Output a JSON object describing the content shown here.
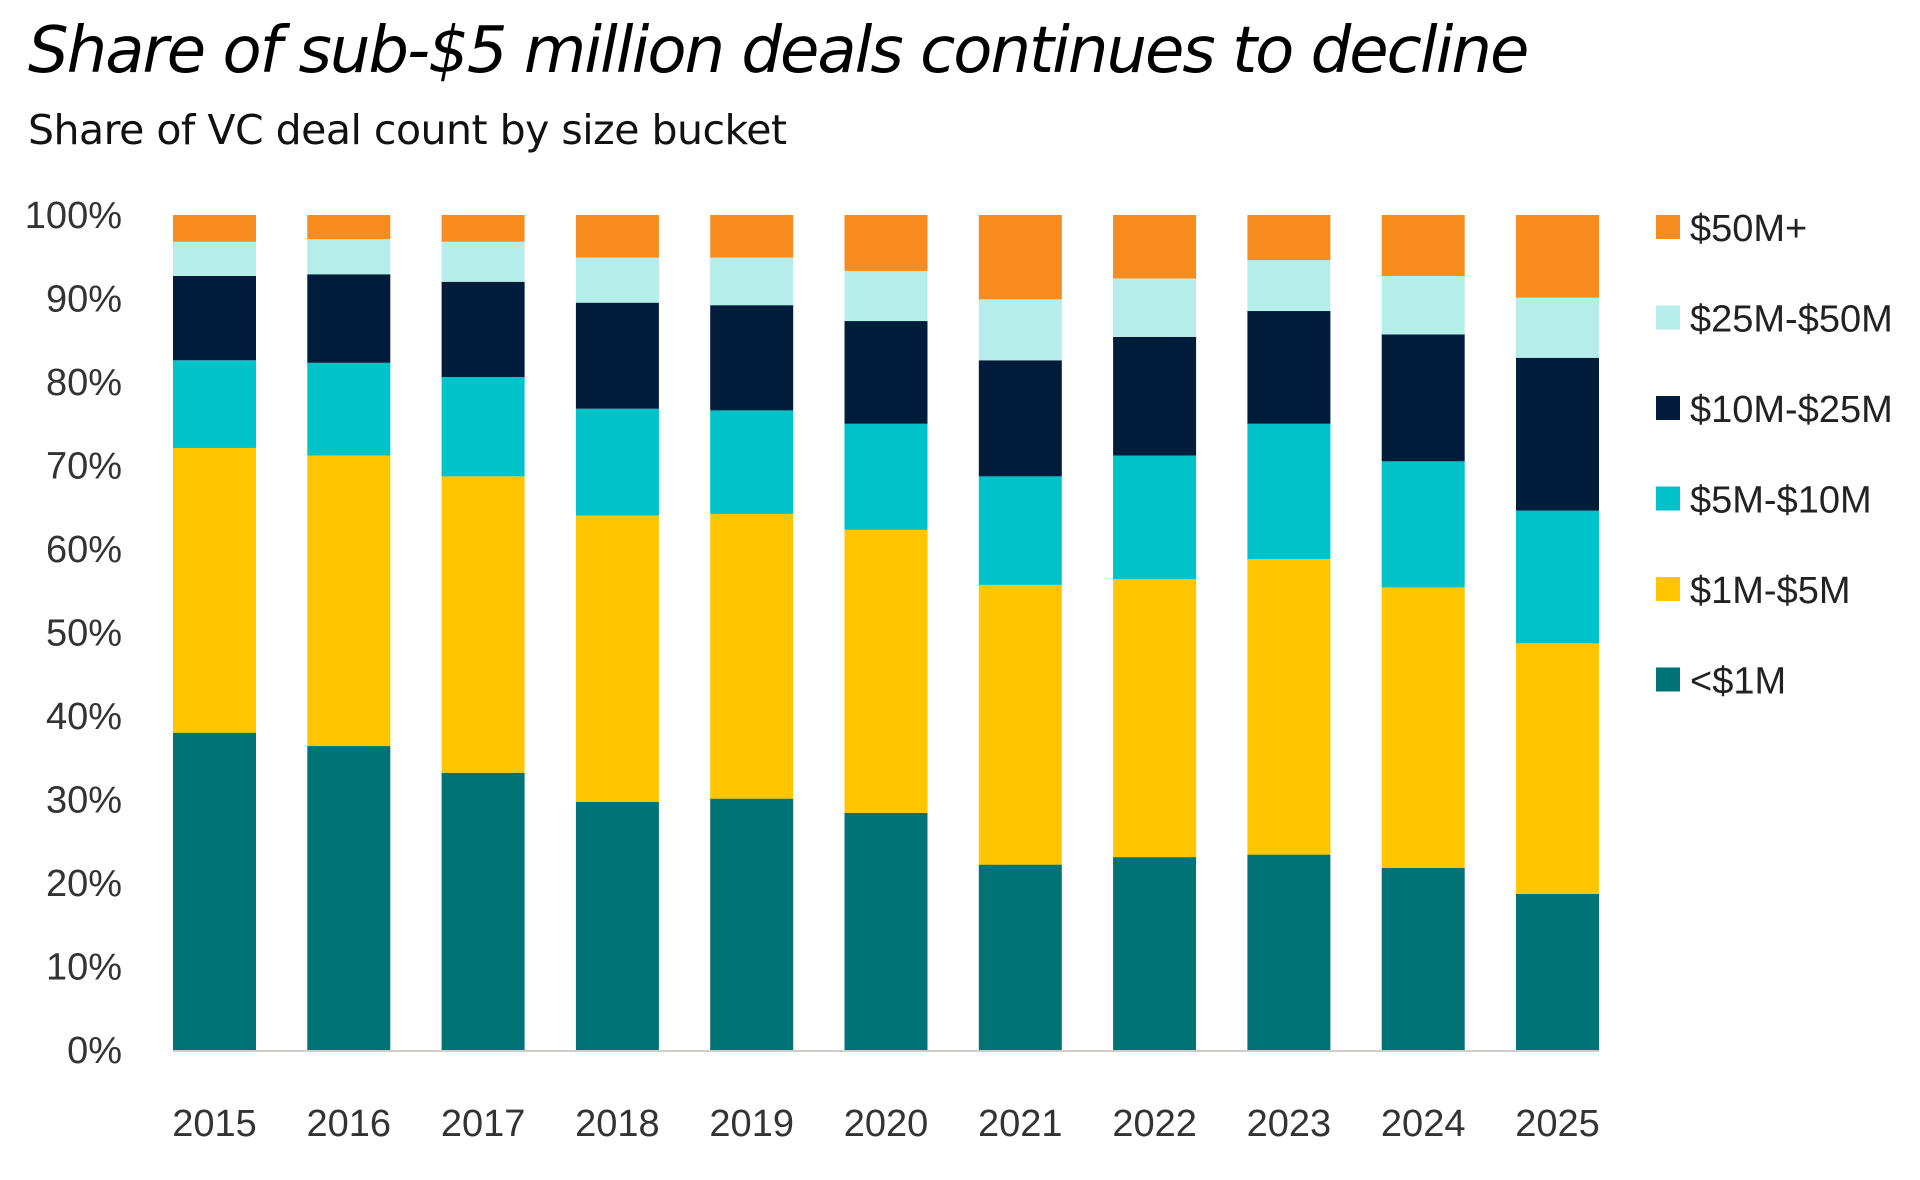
{
  "header": {
    "title": "Share of sub-$5 million deals continues to decline",
    "subtitle": "Share of VC deal count by size bucket"
  },
  "chart_data": {
    "type": "bar",
    "stacked": true,
    "title": "Share of sub-$5 million deals continues to decline",
    "subtitle": "Share of VC deal count by size bucket",
    "xlabel": "",
    "ylabel": "",
    "ylim": [
      0,
      100
    ],
    "yticks": [
      0,
      10,
      20,
      30,
      40,
      50,
      60,
      70,
      80,
      90,
      100
    ],
    "ytick_labels": [
      "0%",
      "10%",
      "20%",
      "30%",
      "40%",
      "50%",
      "60%",
      "70%",
      "80%",
      "90%",
      "100%"
    ],
    "grid": false,
    "legend_position": "right",
    "categories": [
      "2015",
      "2016",
      "2017",
      "2018",
      "2019",
      "2020",
      "2021",
      "2022",
      "2023",
      "2024",
      "2025"
    ],
    "series": [
      {
        "name": "<$1M",
        "color": "#007377",
        "values": [
          38.0,
          36.4,
          33.2,
          29.7,
          30.1,
          28.4,
          22.2,
          23.1,
          23.4,
          21.8,
          18.7
        ]
      },
      {
        "name": "$1M-$5M",
        "color": "#FFC600",
        "values": [
          34.1,
          34.8,
          35.5,
          34.3,
          34.1,
          33.9,
          33.5,
          33.3,
          35.4,
          33.6,
          30.0
        ]
      },
      {
        "name": "$5M-$10M",
        "color": "#00C3C9",
        "values": [
          10.5,
          11.1,
          11.9,
          12.8,
          12.4,
          12.7,
          13.0,
          14.8,
          16.2,
          15.1,
          15.9
        ]
      },
      {
        "name": "$10M-$25M",
        "color": "#021D3B",
        "values": [
          10.1,
          10.6,
          11.4,
          12.7,
          12.6,
          12.3,
          13.9,
          14.2,
          13.5,
          15.2,
          18.3
        ]
      },
      {
        "name": "$25M-$50M",
        "color": "#B5EDEA",
        "values": [
          4.1,
          4.2,
          4.8,
          5.4,
          5.7,
          6.0,
          7.3,
          7.0,
          6.1,
          7.0,
          7.2
        ]
      },
      {
        "name": "$50M+",
        "color": "#F78B1E",
        "values": [
          3.2,
          2.9,
          3.2,
          5.1,
          5.1,
          6.7,
          10.1,
          7.6,
          5.4,
          7.3,
          9.9
        ]
      }
    ],
    "legend_order": [
      "$50M+",
      "$25M-$50M",
      "$10M-$25M",
      "$5M-$10M",
      "$1M-$5M",
      "<$1M"
    ]
  }
}
